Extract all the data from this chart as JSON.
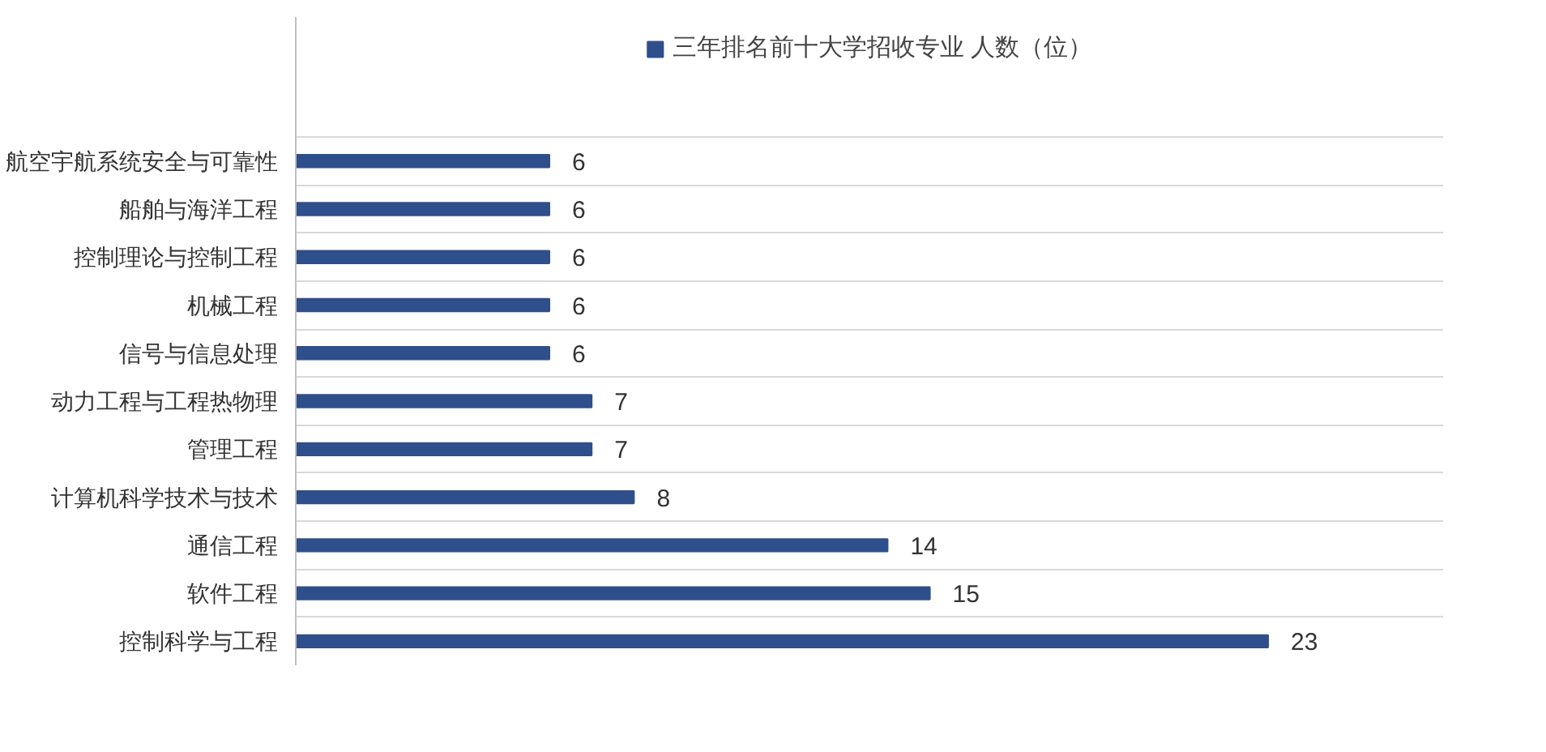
{
  "chart_data": {
    "type": "bar",
    "orientation": "horizontal",
    "categories": [
      "航空宇航系统安全与可靠性",
      "船舶与海洋工程",
      "控制理论与控制工程",
      "机械工程",
      "信号与信息处理",
      "动力工程与工程热物理",
      "管理工程",
      "计算机科学技术与技术",
      "通信工程",
      "软件工程",
      "控制科学与工程"
    ],
    "series": [
      {
        "name": "三年排名前十大学招收专业 人数（位）",
        "color": "#2f4f8c",
        "values": [
          6,
          6,
          6,
          6,
          6,
          7,
          7,
          8,
          14,
          15,
          23
        ]
      }
    ],
    "data_labels": true,
    "legend": "top",
    "grid": "y"
  }
}
